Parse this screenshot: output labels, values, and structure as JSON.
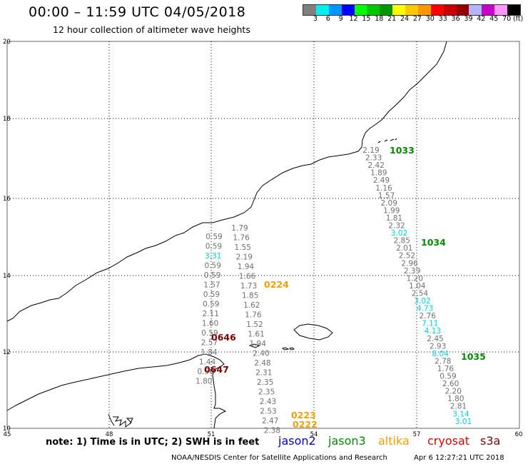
{
  "header": {
    "title": "00:00 – 11:59 UTC 04/05/2018",
    "subtitle": "12 hour collection of altimeter wave heights"
  },
  "colorbar": {
    "colors": [
      "#7f7f7f",
      "#00f0f0",
      "#0096ff",
      "#0000ff",
      "#00ff00",
      "#00c800",
      "#009600",
      "#ffff00",
      "#ffc800",
      "#ff9600",
      "#ff0000",
      "#c80000",
      "#960000",
      "#b4b4ff",
      "#c800c8",
      "#ff96ff",
      "#000000"
    ],
    "ticks": [
      "3",
      "6",
      "9",
      "12",
      "15",
      "18",
      "21",
      "24",
      "27",
      "30",
      "33",
      "36",
      "39",
      "42",
      "45",
      "70"
    ],
    "unit": "(ft)"
  },
  "map": {
    "lon_ticks": [
      "45",
      "48",
      "51",
      "54",
      "57",
      "60"
    ],
    "lat_ticks": [
      "20",
      "18",
      "16",
      "14",
      "12",
      "10"
    ],
    "label_colors": {
      "gray": "#707070",
      "cyan": "#00d0e8",
      "altika": "#f0a000",
      "jason3": "#008a00",
      "s3a": "#800000"
    },
    "tracks": [
      {
        "name": "altika-0224",
        "points": [
          {
            "v": "1.79",
            "c": "gray"
          },
          {
            "v": "1.76",
            "c": "gray"
          },
          {
            "v": "1.55",
            "c": "gray"
          },
          {
            "v": "2.19",
            "c": "gray"
          },
          {
            "v": "1.94",
            "c": "gray"
          },
          {
            "v": "1.66",
            "c": "gray"
          },
          {
            "v": "1.73",
            "c": "gray"
          },
          {
            "v": "1.85",
            "c": "gray"
          },
          {
            "v": "1.62",
            "c": "gray"
          },
          {
            "v": "1.76",
            "c": "gray"
          },
          {
            "v": "1.52",
            "c": "gray"
          },
          {
            "v": "1.61",
            "c": "gray"
          },
          {
            "v": "1.94",
            "c": "gray"
          },
          {
            "v": "2.40",
            "c": "gray"
          },
          {
            "v": "2.48",
            "c": "gray"
          },
          {
            "v": "2.31",
            "c": "gray"
          },
          {
            "v": "2.35",
            "c": "gray"
          },
          {
            "v": "2.35",
            "c": "gray"
          },
          {
            "v": "2.43",
            "c": "gray"
          },
          {
            "v": "2.53",
            "c": "gray"
          },
          {
            "v": "2.47",
            "c": "gray"
          },
          {
            "v": "2.38",
            "c": "gray"
          }
        ]
      },
      {
        "name": "s3a-0646",
        "points": [
          {
            "v": "0.59",
            "c": "gray"
          },
          {
            "v": "0.59",
            "c": "gray"
          },
          {
            "v": "3.31",
            "c": "cyan"
          },
          {
            "v": "0.59",
            "c": "gray"
          },
          {
            "v": "0.59",
            "c": "gray"
          },
          {
            "v": "1.57",
            "c": "gray"
          },
          {
            "v": "0.59",
            "c": "gray"
          },
          {
            "v": "0.59",
            "c": "gray"
          },
          {
            "v": "2.11",
            "c": "gray"
          },
          {
            "v": "1.60",
            "c": "gray"
          },
          {
            "v": "0.59",
            "c": "gray"
          },
          {
            "v": "2.57",
            "c": "gray"
          },
          {
            "v": "1.84",
            "c": "gray"
          },
          {
            "v": "1.44",
            "c": "gray"
          },
          {
            "v": "0.56",
            "c": "gray"
          },
          {
            "v": "1.80",
            "c": "gray"
          }
        ]
      },
      {
        "name": "jason3-1033",
        "points": [
          {
            "v": "2.19",
            "c": "gray"
          },
          {
            "v": "2.33",
            "c": "gray"
          },
          {
            "v": "2.42",
            "c": "gray"
          },
          {
            "v": "1.89",
            "c": "gray"
          },
          {
            "v": "2.49",
            "c": "gray"
          },
          {
            "v": "1.16",
            "c": "gray"
          },
          {
            "v": "1.57",
            "c": "gray"
          },
          {
            "v": "2.09",
            "c": "gray"
          },
          {
            "v": "1.99",
            "c": "gray"
          },
          {
            "v": "1.81",
            "c": "gray"
          },
          {
            "v": "2.32",
            "c": "gray"
          },
          {
            "v": "3.02",
            "c": "cyan"
          },
          {
            "v": "2.85",
            "c": "gray"
          },
          {
            "v": "2.01",
            "c": "gray"
          },
          {
            "v": "2.52",
            "c": "gray"
          },
          {
            "v": "2.96",
            "c": "gray"
          },
          {
            "v": "2.39",
            "c": "gray"
          },
          {
            "v": "1.20",
            "c": "gray"
          },
          {
            "v": "1.04",
            "c": "gray"
          },
          {
            "v": "2.54",
            "c": "gray"
          },
          {
            "v": "3.02",
            "c": "cyan"
          },
          {
            "v": "4.73",
            "c": "cyan"
          },
          {
            "v": "2.76",
            "c": "gray"
          },
          {
            "v": "7.11",
            "c": "cyan"
          },
          {
            "v": "4.13",
            "c": "cyan"
          },
          {
            "v": "2.45",
            "c": "gray"
          },
          {
            "v": "2.93",
            "c": "gray"
          },
          {
            "v": "8.04",
            "c": "cyan"
          },
          {
            "v": "2.78",
            "c": "gray"
          },
          {
            "v": "1.76",
            "c": "gray"
          },
          {
            "v": "0.59",
            "c": "gray"
          },
          {
            "v": "2.60",
            "c": "gray"
          },
          {
            "v": "2.20",
            "c": "gray"
          },
          {
            "v": "1.80",
            "c": "gray"
          },
          {
            "v": "2.81",
            "c": "gray"
          },
          {
            "v": "3.14",
            "c": "cyan"
          },
          {
            "v": "3.01",
            "c": "cyan"
          }
        ]
      }
    ],
    "time_labels": [
      {
        "text": "1033",
        "c": "jason3"
      },
      {
        "text": "1034",
        "c": "jason3"
      },
      {
        "text": "1035",
        "c": "jason3"
      },
      {
        "text": "0224",
        "c": "altika"
      },
      {
        "text": "0223",
        "c": "altika"
      },
      {
        "text": "0222",
        "c": "altika"
      },
      {
        "text": "0646",
        "c": "s3a"
      },
      {
        "text": "0647",
        "c": "s3a"
      }
    ]
  },
  "footer": {
    "note": "note:  1) Time is in UTC;  2) SWH is in feet",
    "satellites": [
      {
        "name": "jason2",
        "color": "#0000d0"
      },
      {
        "name": "jason3",
        "color": "#008a00"
      },
      {
        "name": "altika",
        "color": "#f0a000"
      },
      {
        "name": "cryosat",
        "color": "#e00000"
      },
      {
        "name": "s3a",
        "color": "#800000"
      }
    ],
    "credit": "NOAA/NESDIS Center for Satellite Applications and Research",
    "timestamp": "Apr  6 12:27:21 UTC 2018"
  }
}
